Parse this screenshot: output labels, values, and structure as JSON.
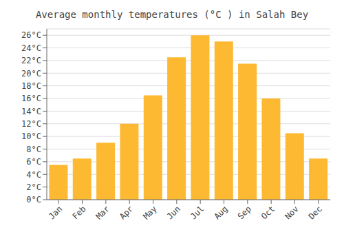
{
  "chart_data": {
    "type": "bar",
    "title": "Average monthly temperatures (°C ) in Salah Bey",
    "categories": [
      "Jan",
      "Feb",
      "Mar",
      "Apr",
      "May",
      "Jun",
      "Jul",
      "Aug",
      "Sep",
      "Oct",
      "Nov",
      "Dec"
    ],
    "values": [
      5.5,
      6.5,
      9.0,
      12.0,
      16.5,
      22.5,
      26.0,
      25.0,
      21.5,
      16.0,
      10.5,
      6.5
    ],
    "color": "#FDB931",
    "ylim": [
      0,
      27
    ],
    "yticks": [
      {
        "value": 0,
        "label": "0°C"
      },
      {
        "value": 2,
        "label": "2°C"
      },
      {
        "value": 4,
        "label": "4°C"
      },
      {
        "value": 6,
        "label": "6°C"
      },
      {
        "value": 8,
        "label": "8°C"
      },
      {
        "value": 10,
        "label": "10°C"
      },
      {
        "value": 12,
        "label": "12°C"
      },
      {
        "value": 14,
        "label": "14°C"
      },
      {
        "value": 16,
        "label": "16°C"
      },
      {
        "value": 18,
        "label": "18°C"
      },
      {
        "value": 20,
        "label": "20°C"
      },
      {
        "value": 22,
        "label": "22°C"
      },
      {
        "value": 24,
        "label": "24°C"
      },
      {
        "value": 26,
        "label": "26°C"
      }
    ],
    "grid": true
  }
}
